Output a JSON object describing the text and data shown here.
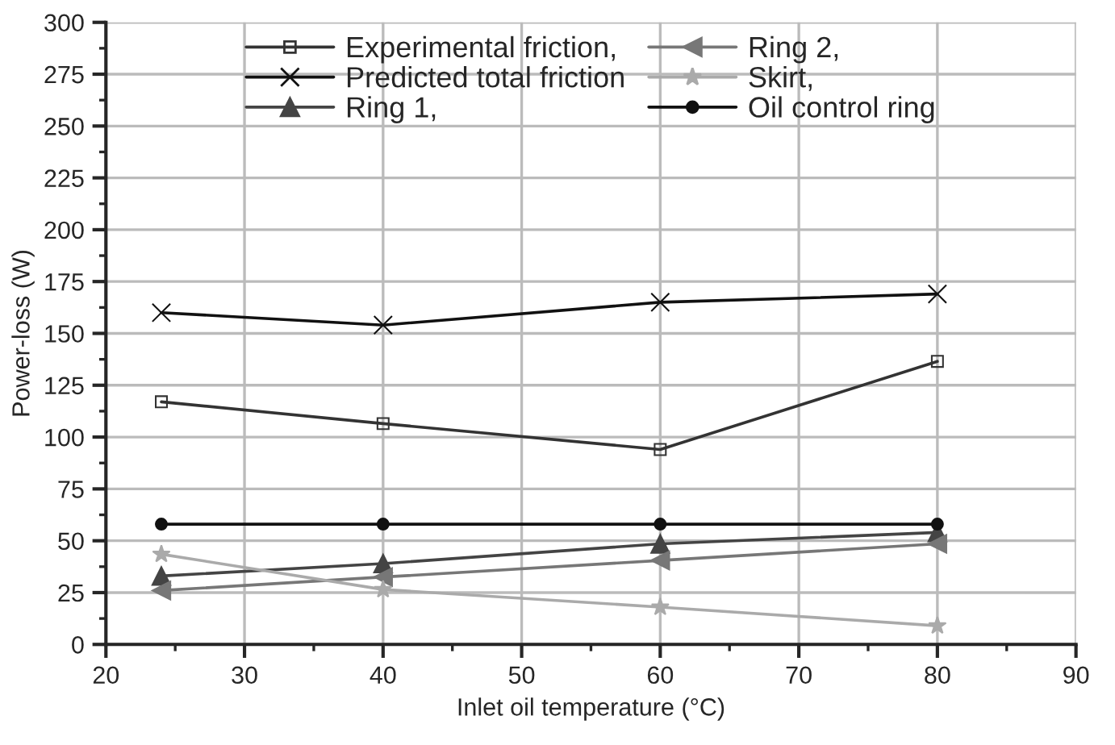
{
  "chart_data": {
    "type": "line",
    "xlabel": "Inlet oil temperature (°C)",
    "ylabel": "Power-loss (W)",
    "x": [
      24,
      40,
      60,
      80
    ],
    "series": [
      {
        "name": "Experimental friction,",
        "color": "#333333",
        "marker": "square",
        "values": [
          117,
          106.5,
          94,
          136.5
        ]
      },
      {
        "name": "Predicted total friction",
        "color": "#111111",
        "marker": "cross",
        "values": [
          160,
          154,
          165,
          169
        ]
      },
      {
        "name": "Ring 1,",
        "color": "#444444",
        "marker": "triangle",
        "values": [
          33,
          39,
          48.5,
          54
        ]
      },
      {
        "name": "Ring 2,",
        "color": "#777777",
        "marker": "triangle-left",
        "values": [
          26,
          32.5,
          40.5,
          48.5
        ]
      },
      {
        "name": "Skirt,",
        "color": "#aaaaaa",
        "marker": "star",
        "values": [
          43.5,
          26.5,
          18,
          9
        ]
      },
      {
        "name": "Oil control ring",
        "color": "#111111",
        "marker": "circle",
        "values": [
          58,
          58,
          58,
          58
        ]
      }
    ],
    "xlim": [
      20,
      90
    ],
    "xticks": [
      20,
      30,
      40,
      50,
      60,
      70,
      80,
      90
    ],
    "ylim": [
      0,
      300
    ],
    "yticks": [
      0,
      25,
      50,
      75,
      100,
      125,
      150,
      175,
      200,
      225,
      250,
      275,
      300
    ],
    "grid": true,
    "legend": "top",
    "line_style": "solid"
  }
}
